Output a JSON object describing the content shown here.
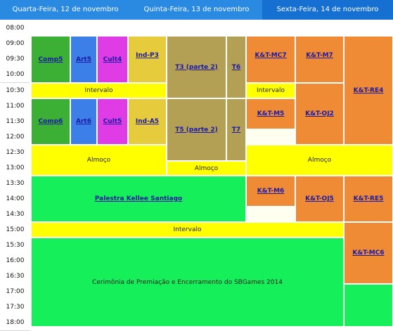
{
  "days": [
    "Quarta-Feira, 12 de novembro",
    "Quinta-Feira, 13 de novembro",
    "Sexta-Feira, 14 de novembro"
  ],
  "times": [
    "08:00",
    "09:00",
    "09:30",
    "10:00",
    "10:30",
    "11:00",
    "11:30",
    "12:00",
    "12:30",
    "13:00",
    "13:30",
    "14:00",
    "14:30",
    "15:00",
    "15:30",
    "16:00",
    "16:30",
    "17:00",
    "17:30",
    "18:00"
  ],
  "colors": {
    "header_left": "#2a89e0",
    "header_right": "#1670d2",
    "green_dark": "#3cb035",
    "blue": "#3d7fe8",
    "magenta": "#e03ce6",
    "mustard": "#e6cc3c",
    "olive": "#b3a055",
    "orange": "#ef8a35",
    "yellow": "#ffff00",
    "green_bright": "#15ef59",
    "ivory": "#fffff0"
  },
  "sessions": {
    "comp5": "Comp5",
    "art5": "Art5",
    "cult4": "Cult4",
    "ind_p3": "Ind-P3",
    "t3": "T3 (parte 2)",
    "t6": "T6",
    "kt_mc7": "K&T-MC7",
    "kt_m7": "K&T-M7",
    "kt_re4": "K&T-RE4",
    "comp6": "Comp6",
    "art6": "Art6",
    "cult5": "Cult5",
    "ind_a5": "Ind-A5",
    "t5": "T5 (parte 2)",
    "t7": "T7",
    "kt_m5": "K&T-M5",
    "kt_oj2": "K&T-OJ2",
    "palestra": "Palestra Kellee Santiago",
    "kt_m6": "K&T-M6",
    "kt_oj5": "K&T-OJ5",
    "kt_re5": "K&T-RE5",
    "kt_mc6": "K&T-MC6"
  },
  "labels": {
    "intervalo": "Intervalo",
    "almoco": "Almoço",
    "cerimonia": "Cerimônia de Premiação e Encerramento do SBGames 2014"
  }
}
